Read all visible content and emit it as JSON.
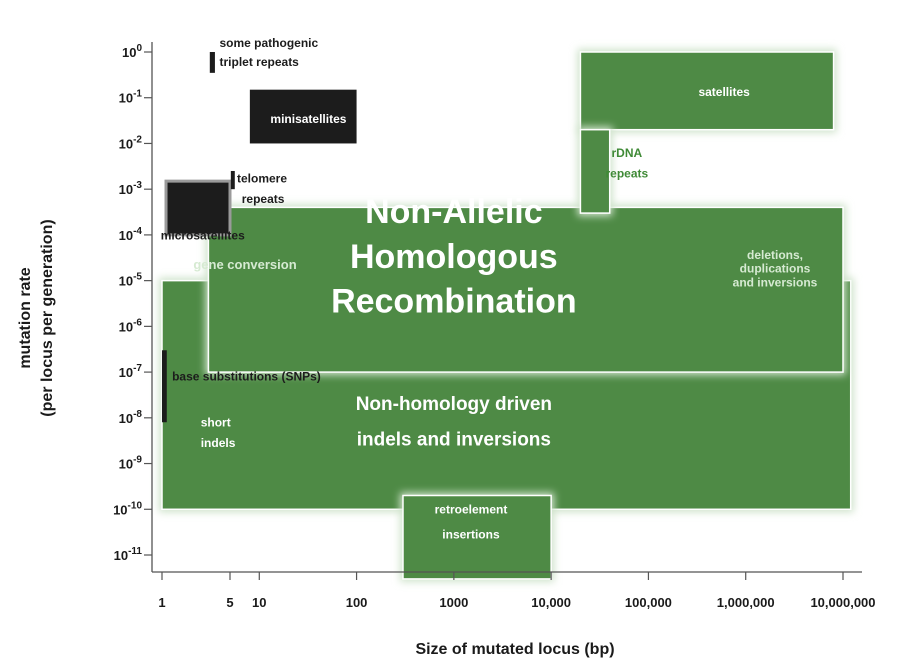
{
  "chart_data": {
    "type": "range-diagram",
    "xlabel": "Size of mutated locus (bp)",
    "ylabel": [
      "mutation rate",
      "(per locus per generation)"
    ],
    "x_scale": "log",
    "y_scale": "log",
    "xlim": [
      1,
      10000000
    ],
    "ylim": [
      1e-11,
      1
    ],
    "x_ticks": [
      {
        "value": 1,
        "label": "1"
      },
      {
        "value": 5,
        "label": "5"
      },
      {
        "value": 10,
        "label": "10"
      },
      {
        "value": 100,
        "label": "100"
      },
      {
        "value": 1000,
        "label": "1000"
      },
      {
        "value": 10000,
        "label": "10,000"
      },
      {
        "value": 100000,
        "label": "100,000"
      },
      {
        "value": 1000000,
        "label": "1,000,000"
      },
      {
        "value": 10000000,
        "label": "10,000,000"
      }
    ],
    "y_ticks": [
      {
        "exp": 0,
        "label": "10",
        "sup": "0"
      },
      {
        "exp": -1,
        "label": "10",
        "sup": "-1"
      },
      {
        "exp": -2,
        "label": "10",
        "sup": "-2"
      },
      {
        "exp": -3,
        "label": "10",
        "sup": "-3"
      },
      {
        "exp": -4,
        "label": "10",
        "sup": "-4"
      },
      {
        "exp": -5,
        "label": "10",
        "sup": "-5"
      },
      {
        "exp": -6,
        "label": "10",
        "sup": "-6"
      },
      {
        "exp": -7,
        "label": "10",
        "sup": "-7"
      },
      {
        "exp": -8,
        "label": "10",
        "sup": "-8"
      },
      {
        "exp": -9,
        "label": "10",
        "sup": "-9"
      },
      {
        "exp": -10,
        "label": "10",
        "sup": "-10"
      },
      {
        "exp": -11,
        "label": "10",
        "sup": "-11"
      }
    ],
    "colors": {
      "green": "#4e8a45",
      "green_glow": "#cfe3cb",
      "black": "#1c1c1c",
      "axis": "#555555"
    },
    "regions": [
      {
        "id": "non-homology",
        "x": [
          1,
          12000000
        ],
        "y": [
          1e-10,
          1e-05
        ],
        "style": "green"
      },
      {
        "id": "nahr",
        "x": [
          3,
          10000000
        ],
        "y": [
          1e-07,
          0.0004
        ],
        "style": "green"
      },
      {
        "id": "retroelement",
        "x": [
          300,
          10000
        ],
        "y": [
          3e-12,
          2e-10
        ],
        "style": "green"
      },
      {
        "id": "satellites",
        "x": [
          20000,
          8000000
        ],
        "y": [
          0.02,
          1
        ],
        "style": "green"
      },
      {
        "id": "rdna",
        "x": [
          20000,
          40000
        ],
        "y": [
          0.0003,
          0.02
        ],
        "style": "green"
      },
      {
        "id": "minisatellites",
        "x": [
          8,
          100
        ],
        "y": [
          0.01,
          0.15
        ],
        "style": "black"
      },
      {
        "id": "microsatellites",
        "x": [
          1.1,
          5
        ],
        "y": [
          0.0001,
          0.0015
        ],
        "style": "black"
      },
      {
        "id": "triplet-bar",
        "x": [
          3.1,
          3.5
        ],
        "y": [
          0.35,
          1
        ],
        "style": "black"
      },
      {
        "id": "telomere-bar",
        "x": [
          5.1,
          5.6
        ],
        "y": [
          0.001,
          0.0025
        ],
        "style": "black"
      },
      {
        "id": "snp-bar",
        "x": [
          1,
          1.12
        ],
        "y": [
          8e-09,
          3e-07
        ],
        "style": "black"
      }
    ],
    "annotations": [
      {
        "text": "Non-Allelic",
        "x": 1000,
        "y": 0.00018,
        "size": 34,
        "color": "#ffffff",
        "anchor": "middle"
      },
      {
        "text": "Homologous",
        "x": 1000,
        "y": 1.9e-05,
        "size": 34,
        "color": "#ffffff",
        "anchor": "middle"
      },
      {
        "text": "Recombination",
        "x": 1000,
        "y": 2e-06,
        "size": 34,
        "color": "#ffffff",
        "anchor": "middle"
      },
      {
        "text": "Non-homology driven",
        "x": 1000,
        "y": 1.5e-08,
        "size": 19,
        "color": "#ffffff",
        "anchor": "middle"
      },
      {
        "text": "indels and inversions",
        "x": 1000,
        "y": 2.5e-09,
        "size": 19,
        "color": "#ffffff",
        "anchor": "middle"
      },
      {
        "text": "gene conversion",
        "x": 2.1,
        "y": 1.8e-05,
        "size": 13,
        "color": "#d6ead2",
        "anchor": "start"
      },
      {
        "text": "deletions,",
        "x": 2000000,
        "y": 3e-05,
        "size": 12,
        "color": "#d6ead2",
        "anchor": "middle"
      },
      {
        "text": "duplications",
        "x": 2000000,
        "y": 1.5e-05,
        "size": 12,
        "color": "#d6ead2",
        "anchor": "middle"
      },
      {
        "text": "and inversions",
        "x": 2000000,
        "y": 7.5e-06,
        "size": 12,
        "color": "#d6ead2",
        "anchor": "middle"
      },
      {
        "text": "short",
        "x": 2.5,
        "y": 6.5e-09,
        "size": 12,
        "color": "#ffffff",
        "anchor": "start"
      },
      {
        "text": "indels",
        "x": 2.5,
        "y": 2.3e-09,
        "size": 12,
        "color": "#ffffff",
        "anchor": "start"
      },
      {
        "text": "retroelement",
        "x": 1500,
        "y": 8e-11,
        "size": 12,
        "color": "#ffffff",
        "anchor": "middle"
      },
      {
        "text": "insertions",
        "x": 1500,
        "y": 2.3e-11,
        "size": 12,
        "color": "#ffffff",
        "anchor": "middle"
      },
      {
        "text": "satellites",
        "x": 600000,
        "y": 0.11,
        "size": 12,
        "color": "#ffffff",
        "anchor": "middle"
      },
      {
        "text": "rDNA",
        "x": 60000,
        "y": 0.005,
        "size": 12,
        "color": "#3f8a36",
        "anchor": "middle"
      },
      {
        "text": "repeats",
        "x": 60000,
        "y": 0.0018,
        "size": 12,
        "color": "#3f8a36",
        "anchor": "middle"
      },
      {
        "text": "minisatellites",
        "x": 32,
        "y": 0.028,
        "size": 12,
        "color": "#ffffff",
        "anchor": "middle"
      },
      {
        "text": "microsatellites",
        "x": 0.97,
        "y": 8e-05,
        "size": 12,
        "color": "#1c1c1c",
        "anchor": "start"
      },
      {
        "text": "telomere",
        "x": 5.9,
        "y": 0.0014,
        "size": 12,
        "color": "#1c1c1c",
        "anchor": "start"
      },
      {
        "text": "repeats",
        "x": 6.6,
        "y": 0.0005,
        "size": 12,
        "color": "#1c1c1c",
        "anchor": "start"
      },
      {
        "text": "some pathogenic",
        "x": 3.9,
        "y": 1.3,
        "size": 12,
        "color": "#1c1c1c",
        "anchor": "start"
      },
      {
        "text": "triplet repeats",
        "x": 3.9,
        "y": 0.5,
        "size": 12,
        "color": "#1c1c1c",
        "anchor": "start"
      },
      {
        "text": "base substitutions (SNPs)",
        "x": 1.27,
        "y": 6.5e-08,
        "size": 12,
        "color": "#1c1c1c",
        "anchor": "start"
      }
    ]
  }
}
